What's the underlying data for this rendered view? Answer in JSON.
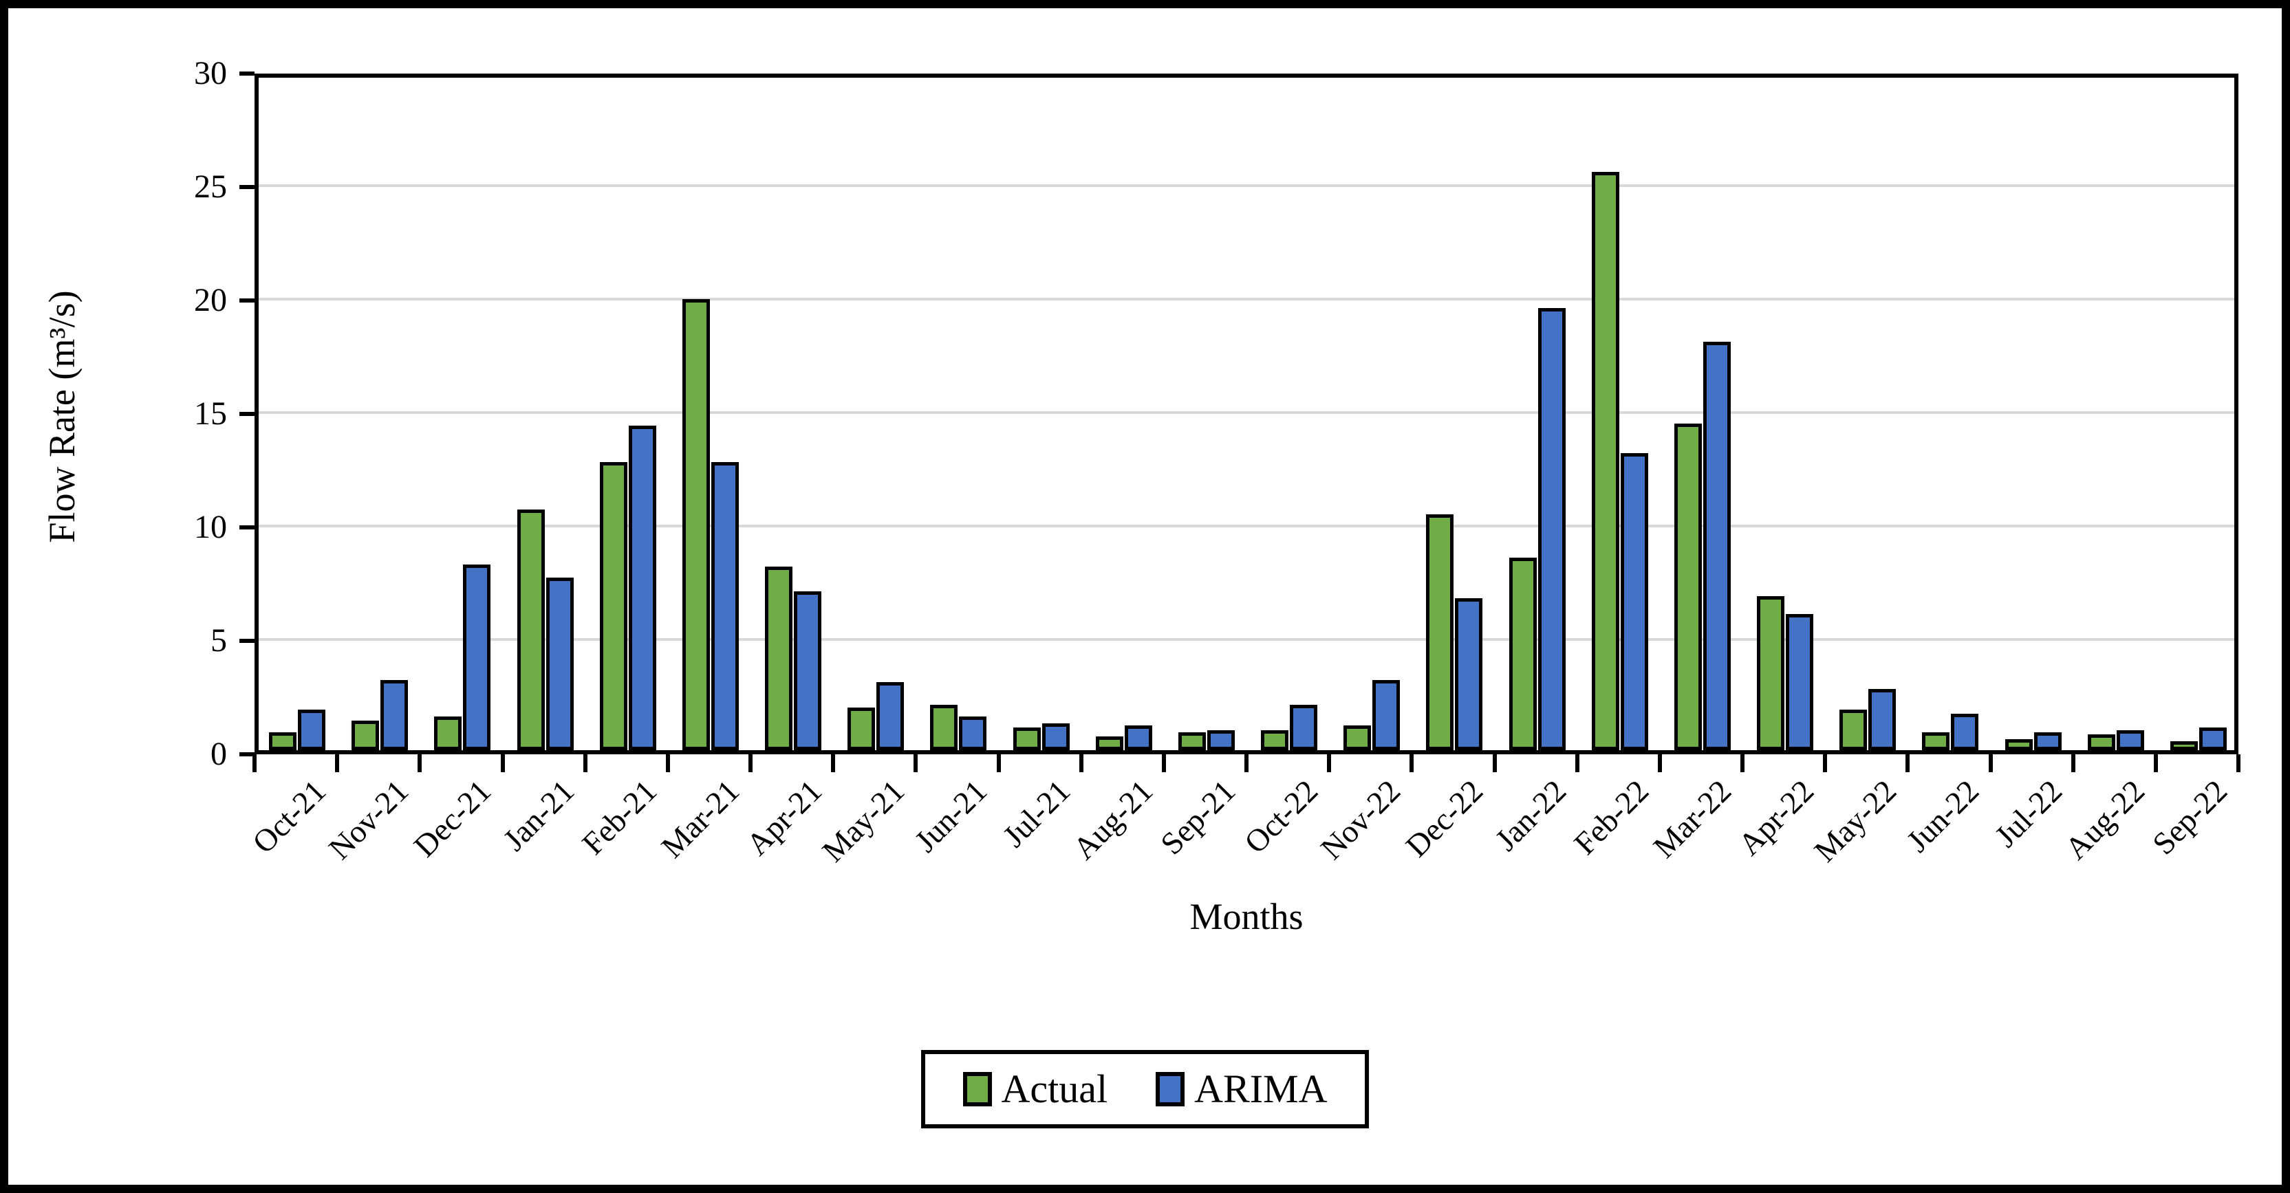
{
  "chart_data": {
    "type": "bar",
    "title": "",
    "xlabel": "Months",
    "ylabel": "Flow Rate (m³/s)",
    "ylim": [
      0,
      30
    ],
    "yticks": [
      0,
      5,
      10,
      15,
      20,
      25,
      30
    ],
    "grid": "horizontal",
    "gridline_color": "#D9D9D9",
    "legend_position": "bottom-center",
    "categories": [
      "Oct-21",
      "Nov-21",
      "Dec-21",
      "Jan-21",
      "Feb-21",
      "Mar-21",
      "Apr-21",
      "May-21",
      "Jun-21",
      "Jul-21",
      "Aug-21",
      "Sep-21",
      "Oct-22",
      "Nov-22",
      "Dec-22",
      "Jan-22",
      "Feb-22",
      "Mar-22",
      "Apr-22",
      "May-22",
      "Jun-22",
      "Jul-22",
      "Aug-22",
      "Sep-22"
    ],
    "series": [
      {
        "name": "Actual",
        "color": "#70AD47",
        "values": [
          0.7,
          1.2,
          1.4,
          10.5,
          12.6,
          19.8,
          8.0,
          1.8,
          1.9,
          0.9,
          0.5,
          0.7,
          0.8,
          1.0,
          10.3,
          8.4,
          25.4,
          14.3,
          6.7,
          1.7,
          0.7,
          0.4,
          0.6,
          0.3
        ]
      },
      {
        "name": "ARIMA",
        "color": "#4472C4",
        "values": [
          1.7,
          3.0,
          8.1,
          7.5,
          14.2,
          12.6,
          6.9,
          2.9,
          1.4,
          1.1,
          1.0,
          0.8,
          1.9,
          3.0,
          6.6,
          19.4,
          13.0,
          17.9,
          5.9,
          2.6,
          1.5,
          0.7,
          0.8,
          0.9
        ]
      }
    ],
    "bar_outline_color": "#000000"
  },
  "legend": {
    "actual_label": "Actual",
    "arima_label": "ARIMA"
  },
  "axes": {
    "x_title": "Months",
    "y_title_html": "Flow Rate (m³/s)"
  }
}
